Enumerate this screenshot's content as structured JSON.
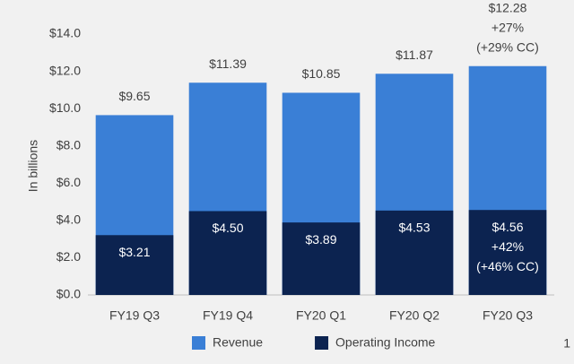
{
  "chart_data": {
    "type": "bar",
    "overlap": true,
    "y_axis_label": "In billions",
    "categories": [
      "FY19 Q3",
      "FY19 Q4",
      "FY20 Q1",
      "FY20 Q2",
      "FY20 Q3"
    ],
    "series": [
      {
        "name": "Revenue",
        "color": "#3a7fd6",
        "values": [
          9.65,
          11.39,
          10.85,
          11.87,
          12.28
        ],
        "value_labels": [
          "$9.65",
          "$11.39",
          "$10.85",
          "$11.87",
          "$12.28"
        ]
      },
      {
        "name": "Operating Income",
        "color": "#0c2350",
        "values": [
          3.21,
          4.5,
          3.89,
          4.53,
          4.56
        ],
        "value_labels": [
          "$3.21",
          "$4.50",
          "$3.89",
          "$4.53",
          "$4.56"
        ]
      }
    ],
    "annotations": [
      "+27%",
      "(+29% CC)",
      "+42%",
      "(+46% CC)"
    ],
    "ylim": [
      0,
      14
    ],
    "yticks": [
      {
        "value": 0,
        "label": "$0.0"
      },
      {
        "value": 2,
        "label": "$2.0"
      },
      {
        "value": 4,
        "label": "$4.0"
      },
      {
        "value": 6,
        "label": "$6.0"
      },
      {
        "value": 8,
        "label": "$8.0"
      },
      {
        "value": 10,
        "label": "$10.0"
      },
      {
        "value": 12,
        "label": "$12.0"
      },
      {
        "value": 14,
        "label": "$14.0"
      }
    ],
    "grid": false,
    "legend": "bottom",
    "page_number": "1"
  }
}
